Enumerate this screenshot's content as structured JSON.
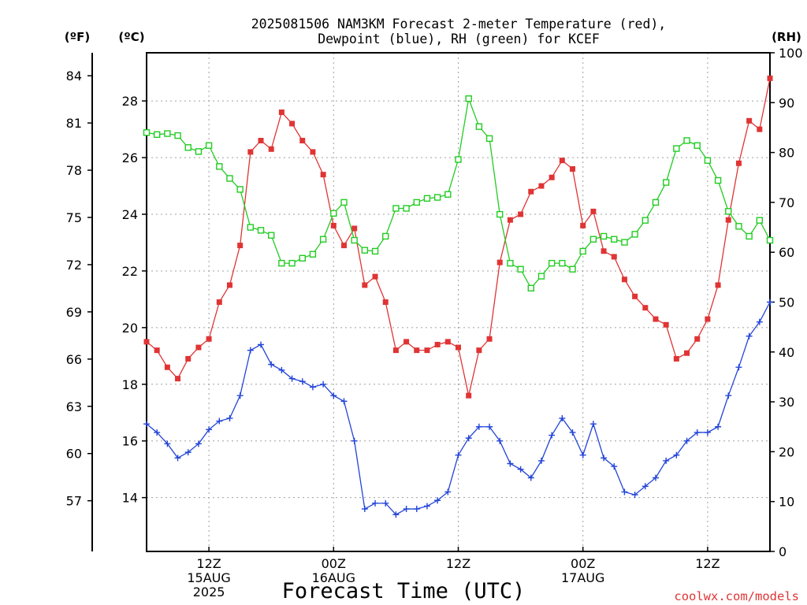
{
  "chart_data": {
    "type": "line",
    "title_line1": "2025081506 NAM3KM Forecast 2-meter Temperature (red),",
    "title_line2": "Dewpoint (blue), RH (green) for KCEF",
    "xlabel": "Forecast Time (UTC)",
    "units": {
      "fahrenheit": "(ºF)",
      "celsius": "(ºC)",
      "rh": "(RH)"
    },
    "x_ticks": [
      {
        "hour": 6,
        "lines": [
          "12Z",
          "15AUG",
          "2025"
        ]
      },
      {
        "hour": 18,
        "lines": [
          "00Z",
          "16AUG"
        ]
      },
      {
        "hour": 30,
        "lines": [
          "12Z"
        ]
      },
      {
        "hour": 42,
        "lines": [
          "00Z",
          "17AUG"
        ]
      },
      {
        "hour": 54,
        "lines": [
          "12Z"
        ]
      }
    ],
    "x_range": [
      0,
      60
    ],
    "celsius_range": [
      12.1,
      29.7
    ],
    "celsius_ticks": [
      "14",
      "16",
      "18",
      "20",
      "22",
      "24",
      "26",
      "28"
    ],
    "fahrenheit_ticks": [
      "57",
      "60",
      "63",
      "66",
      "69",
      "72",
      "75",
      "78",
      "81",
      "84"
    ],
    "rh_range": [
      0,
      100
    ],
    "rh_ticks": [
      "0",
      "10",
      "20",
      "30",
      "40",
      "50",
      "60",
      "70",
      "80",
      "90",
      "100"
    ],
    "grid": true,
    "credit": "coolwx.com/models",
    "colors": {
      "temperature": "#e03434",
      "dewpoint": "#2244d8",
      "rh": "#22cc22",
      "grid": "#a0a0a0"
    },
    "series": [
      {
        "name": "Temperature (red)",
        "units": "C",
        "color": "#e03434",
        "values": [
          19.5,
          19.2,
          18.6,
          18.2,
          18.9,
          19.3,
          19.6,
          20.9,
          21.5,
          22.9,
          26.2,
          26.6,
          26.3,
          27.6,
          27.2,
          26.6,
          26.2,
          25.4,
          23.6,
          22.9,
          23.5,
          21.5,
          21.8,
          20.9,
          19.2,
          19.5,
          19.2,
          19.2,
          19.4,
          19.5,
          19.3,
          17.6,
          19.2,
          19.6,
          22.3,
          23.8,
          24.0,
          24.8,
          25.0,
          25.3,
          25.9,
          25.6,
          23.6,
          24.1,
          22.7,
          22.5,
          21.7,
          21.1,
          20.7,
          20.3,
          20.1,
          18.9,
          19.1,
          19.6,
          20.3,
          21.5,
          23.8,
          25.8,
          27.3,
          27.0,
          28.8
        ]
      },
      {
        "name": "Dewpoint (blue)",
        "units": "C",
        "color": "#2244d8",
        "values": [
          16.6,
          16.3,
          15.9,
          15.4,
          15.6,
          15.9,
          16.4,
          16.7,
          16.8,
          17.6,
          19.2,
          19.4,
          18.7,
          18.5,
          18.2,
          18.1,
          17.9,
          18.0,
          17.6,
          17.4,
          16.0,
          13.6,
          13.8,
          13.8,
          13.4,
          13.6,
          13.6,
          13.7,
          13.9,
          14.2,
          15.5,
          16.1,
          16.5,
          16.5,
          16.0,
          15.2,
          15.0,
          14.7,
          15.3,
          16.2,
          16.8,
          16.3,
          15.5,
          16.6,
          15.4,
          15.1,
          14.2,
          14.1,
          14.4,
          14.7,
          15.3,
          15.5,
          16.0,
          16.3,
          16.3,
          16.5,
          17.6,
          18.6,
          19.7,
          20.2,
          20.9
        ]
      },
      {
        "name": "RH (green)",
        "units": "%",
        "color": "#22cc22",
        "values": [
          84,
          83.6,
          83.8,
          83.4,
          81,
          80.2,
          81.4,
          77.2,
          74.8,
          72.6,
          65,
          64.4,
          63.4,
          57.8,
          57.8,
          58.8,
          59.6,
          62.6,
          67.8,
          70,
          62.4,
          60.4,
          60.2,
          63.2,
          68.8,
          68.8,
          70,
          70.8,
          71,
          71.6,
          78.6,
          90.8,
          85.2,
          82.8,
          67.6,
          57.8,
          56.6,
          52.8,
          55.2,
          57.8,
          57.8,
          56.6,
          60.2,
          62.6,
          63.2,
          62.6,
          62,
          63.6,
          66.4,
          70,
          74,
          80.8,
          82.4,
          81.4,
          78.4,
          74.4,
          68.2,
          65.2,
          63.2,
          66.4,
          62.4
        ]
      }
    ]
  }
}
